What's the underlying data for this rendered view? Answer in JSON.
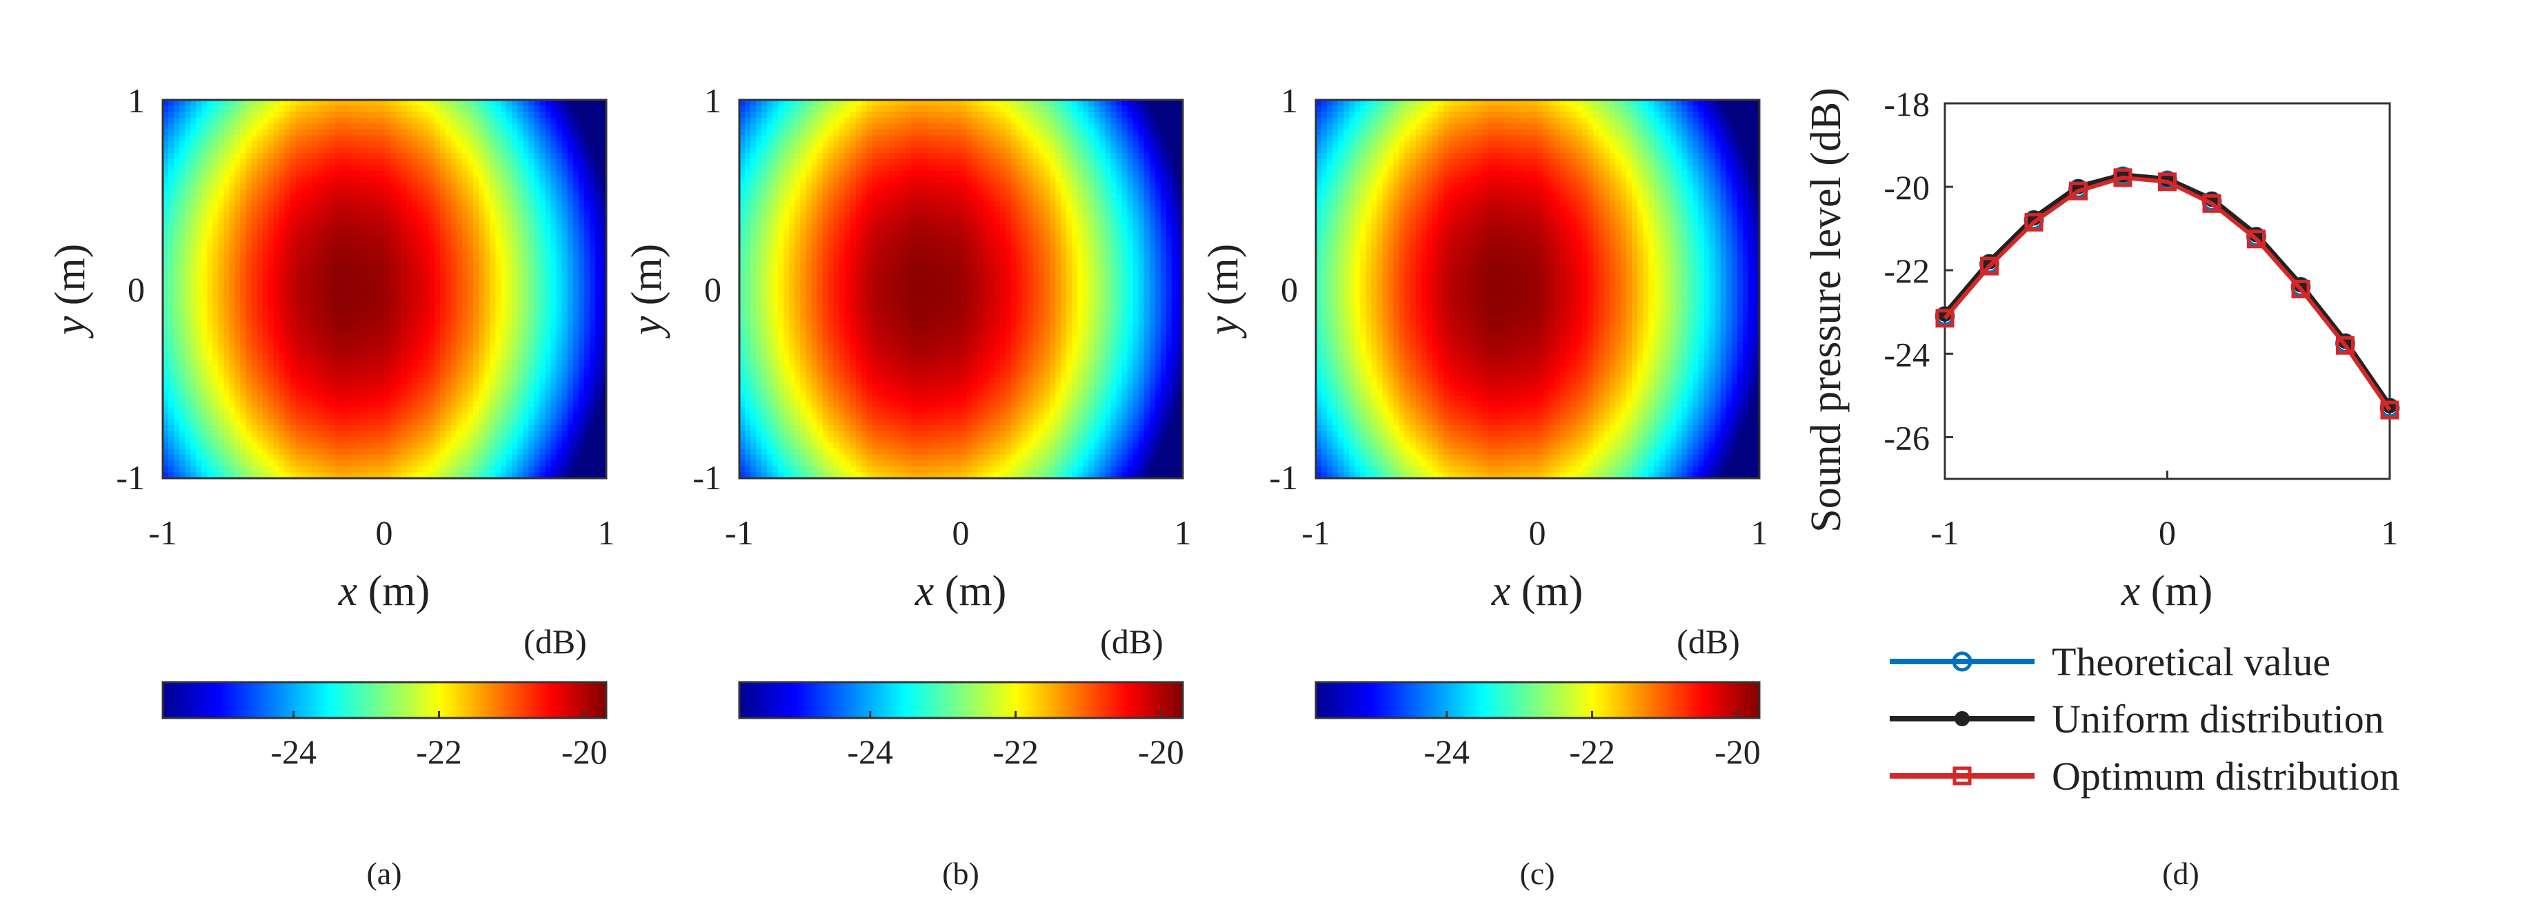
{
  "figure": {
    "panels": [
      {
        "caption": "(a)",
        "xlabel_var": "x",
        "xlabel_unit": " (m)",
        "ylabel_var": "y",
        "ylabel_unit": " (m)",
        "colorbar_unit": "(dB)"
      },
      {
        "caption": "(b)",
        "xlabel_var": "x",
        "xlabel_unit": " (m)",
        "ylabel_var": "y",
        "ylabel_unit": " (m)",
        "colorbar_unit": "(dB)"
      },
      {
        "caption": "(c)",
        "xlabel_var": "x",
        "xlabel_unit": " (m)",
        "ylabel_var": "y",
        "ylabel_unit": " (m)",
        "colorbar_unit": "(dB)"
      }
    ],
    "line_panel": {
      "caption": "(d)",
      "xlabel_var": "x",
      "xlabel_unit": " (m)",
      "ylabel": "Sound pressure level (dB)"
    }
  },
  "chart_data": [
    {
      "type": "heatmap",
      "panel": "a",
      "xlabel": "x (m)",
      "ylabel": "y (m)",
      "xlim": [
        -1,
        1
      ],
      "ylim": [
        -1,
        1
      ],
      "x_ticks": [
        "-1",
        "0",
        "1"
      ],
      "y_ticks": [
        "-1",
        "0",
        "1"
      ],
      "colorbar": {
        "unit": "(dB)",
        "range": [
          -25.8,
          -19.7
        ],
        "ticks": [
          "-24",
          "-22",
          "-20"
        ],
        "tick_values": [
          -24,
          -22,
          -20
        ],
        "colormap": "jet"
      },
      "peak": {
        "x": -0.2,
        "y": 0.0,
        "value": -19.75
      },
      "profile_y0": {
        "x": [
          -1,
          -0.8,
          -0.6,
          -0.4,
          -0.2,
          0,
          0.2,
          0.4,
          0.6,
          0.8,
          1
        ],
        "values": [
          -23.1,
          -21.85,
          -20.8,
          -20.05,
          -19.75,
          -19.85,
          -20.35,
          -21.2,
          -22.4,
          -23.75,
          -25.3
        ]
      },
      "spread_y": 1.8
    },
    {
      "type": "heatmap",
      "panel": "b",
      "xlabel": "x (m)",
      "ylabel": "y (m)",
      "xlim": [
        -1,
        1
      ],
      "ylim": [
        -1,
        1
      ],
      "x_ticks": [
        "-1",
        "0",
        "1"
      ],
      "y_ticks": [
        "-1",
        "0",
        "1"
      ],
      "colorbar": {
        "unit": "(dB)",
        "range": [
          -25.8,
          -19.7
        ],
        "ticks": [
          "-24",
          "-22",
          "-20"
        ],
        "tick_values": [
          -24,
          -22,
          -20
        ],
        "colormap": "jet"
      },
      "peak": {
        "x": -0.15,
        "y": 0.0,
        "value": -19.75
      },
      "profile_y0": {
        "x": [
          -1,
          -0.8,
          -0.6,
          -0.4,
          -0.2,
          0,
          0.2,
          0.4,
          0.6,
          0.8,
          1
        ],
        "values": [
          -23.05,
          -21.8,
          -20.75,
          -20.0,
          -19.75,
          -19.85,
          -20.35,
          -21.15,
          -22.35,
          -23.7,
          -25.3
        ]
      },
      "spread_y": 1.8
    },
    {
      "type": "heatmap",
      "panel": "c",
      "xlabel": "x (m)",
      "ylabel": "y (m)",
      "xlim": [
        -1,
        1
      ],
      "ylim": [
        -1,
        1
      ],
      "x_ticks": [
        "-1",
        "0",
        "1"
      ],
      "y_ticks": [
        "-1",
        "0",
        "1"
      ],
      "colorbar": {
        "unit": "(dB)",
        "range": [
          -25.8,
          -19.7
        ],
        "ticks": [
          "-24",
          "-22",
          "-20"
        ],
        "tick_values": [
          -24,
          -22,
          -20
        ],
        "colormap": "jet"
      },
      "peak": {
        "x": -0.2,
        "y": 0.0,
        "value": -19.75
      },
      "profile_y0": {
        "x": [
          -1,
          -0.8,
          -0.6,
          -0.4,
          -0.2,
          0,
          0.2,
          0.4,
          0.6,
          0.8,
          1
        ],
        "values": [
          -23.15,
          -21.9,
          -20.8,
          -20.05,
          -19.75,
          -19.85,
          -20.4,
          -21.25,
          -22.45,
          -23.8,
          -25.35
        ]
      },
      "spread_y": 1.8
    },
    {
      "type": "line",
      "panel": "d",
      "xlabel": "x (m)",
      "ylabel": "Sound pressure level (dB)",
      "xlim": [
        -1,
        1
      ],
      "ylim": [
        -27,
        -18
      ],
      "x_ticks": [
        "-1",
        "0",
        "1"
      ],
      "x_tick_values": [
        -1,
        0,
        1
      ],
      "y_ticks": [
        "-18",
        "-20",
        "-22",
        "-24",
        "-26"
      ],
      "y_tick_values": [
        -18,
        -20,
        -22,
        -24,
        -26
      ],
      "grid": false,
      "legend_position": "below",
      "x": [
        -1,
        -0.8,
        -0.6,
        -0.4,
        -0.2,
        0,
        0.2,
        0.4,
        0.6,
        0.8,
        1
      ],
      "series": [
        {
          "name": "Theoretical value",
          "color": "#0072BD",
          "marker": "circle",
          "values": [
            -23.1,
            -21.85,
            -20.8,
            -20.05,
            -19.75,
            -19.85,
            -20.35,
            -21.2,
            -22.4,
            -23.75,
            -25.3
          ]
        },
        {
          "name": "Uniform distribution",
          "color": "#222222",
          "marker": "dot",
          "values": [
            -23.05,
            -21.8,
            -20.75,
            -20.0,
            -19.72,
            -19.82,
            -20.3,
            -21.15,
            -22.35,
            -23.7,
            -25.25
          ]
        },
        {
          "name": "Optimum distribution",
          "color": "#D62728",
          "marker": "square",
          "values": [
            -23.15,
            -21.9,
            -20.85,
            -20.1,
            -19.78,
            -19.88,
            -20.4,
            -21.25,
            -22.45,
            -23.8,
            -25.35
          ]
        }
      ]
    }
  ]
}
